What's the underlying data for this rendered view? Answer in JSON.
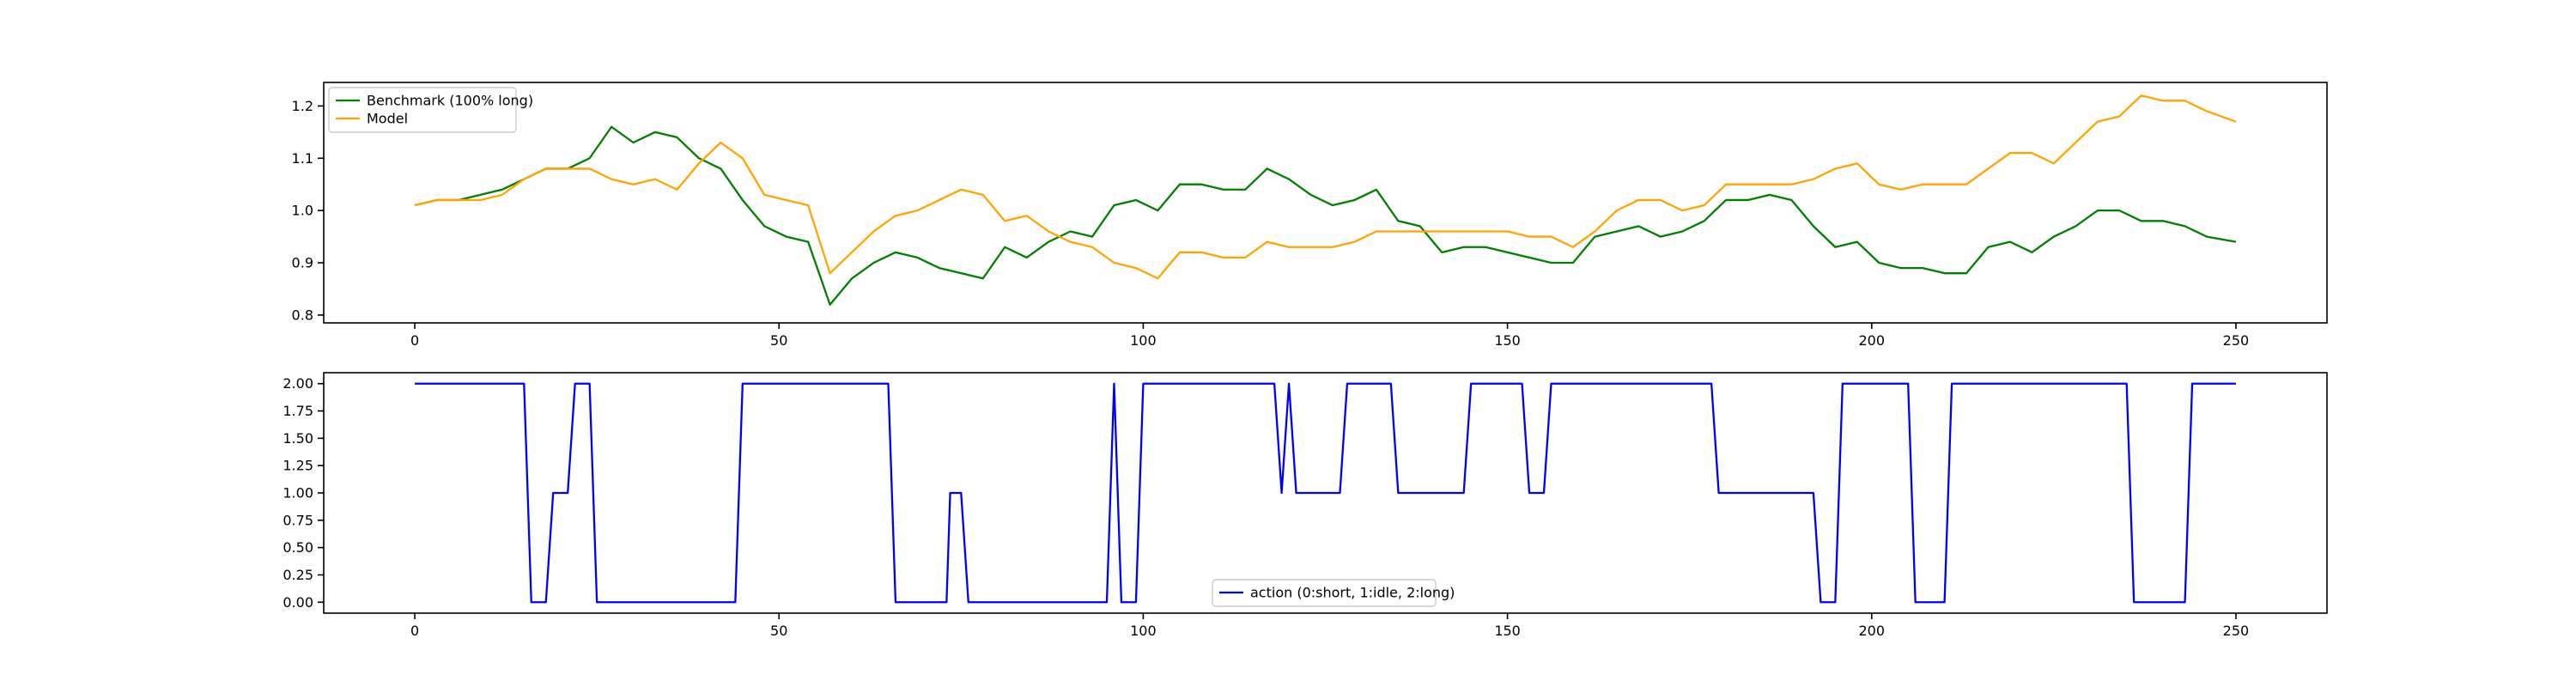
{
  "chart_data": [
    {
      "type": "line",
      "x": [
        0,
        3,
        6,
        9,
        12,
        15,
        18,
        21,
        24,
        27,
        30,
        33,
        36,
        39,
        42,
        45,
        48,
        51,
        54,
        57,
        60,
        63,
        66,
        69,
        72,
        75,
        78,
        81,
        84,
        87,
        90,
        93,
        96,
        99,
        102,
        105,
        108,
        111,
        114,
        117,
        120,
        123,
        126,
        129,
        132,
        135,
        138,
        141,
        144,
        147,
        150,
        153,
        156,
        159,
        162,
        165,
        168,
        171,
        174,
        177,
        180,
        183,
        186,
        189,
        192,
        195,
        198,
        201,
        204,
        207,
        210,
        213,
        216,
        219,
        222,
        225,
        228,
        231,
        234,
        237,
        240,
        243,
        246,
        250
      ],
      "series": [
        {
          "name": "Benchmark (100% long)",
          "color": "#008000",
          "values": [
            1.01,
            1.02,
            1.02,
            1.03,
            1.04,
            1.06,
            1.08,
            1.08,
            1.1,
            1.16,
            1.13,
            1.15,
            1.14,
            1.1,
            1.08,
            1.02,
            0.97,
            0.95,
            0.94,
            0.82,
            0.87,
            0.9,
            0.92,
            0.91,
            0.89,
            0.88,
            0.87,
            0.93,
            0.91,
            0.94,
            0.96,
            0.95,
            1.01,
            1.02,
            1.0,
            1.05,
            1.05,
            1.04,
            1.04,
            1.08,
            1.06,
            1.03,
            1.01,
            1.02,
            1.04,
            0.98,
            0.97,
            0.92,
            0.93,
            0.93,
            0.92,
            0.91,
            0.9,
            0.9,
            0.95,
            0.96,
            0.97,
            0.95,
            0.96,
            0.98,
            1.02,
            1.02,
            1.03,
            1.02,
            0.97,
            0.93,
            0.94,
            0.9,
            0.89,
            0.89,
            0.88,
            0.88,
            0.93,
            0.94,
            0.92,
            0.95,
            0.97,
            1.0,
            1.0,
            0.98,
            0.98,
            0.97,
            0.95,
            0.94
          ]
        },
        {
          "name": "Model",
          "color": "#FFA500",
          "values": [
            1.01,
            1.02,
            1.02,
            1.02,
            1.03,
            1.06,
            1.08,
            1.08,
            1.08,
            1.06,
            1.05,
            1.06,
            1.04,
            1.09,
            1.13,
            1.1,
            1.03,
            1.02,
            1.01,
            0.88,
            0.92,
            0.96,
            0.99,
            1.0,
            1.02,
            1.04,
            1.03,
            0.98,
            0.99,
            0.96,
            0.94,
            0.93,
            0.9,
            0.89,
            0.87,
            0.92,
            0.92,
            0.91,
            0.91,
            0.94,
            0.93,
            0.93,
            0.93,
            0.94,
            0.96,
            0.96,
            0.96,
            0.96,
            0.96,
            0.96,
            0.96,
            0.95,
            0.95,
            0.93,
            0.96,
            1.0,
            1.02,
            1.02,
            1.0,
            1.01,
            1.05,
            1.05,
            1.05,
            1.05,
            1.06,
            1.08,
            1.09,
            1.05,
            1.04,
            1.05,
            1.05,
            1.05,
            1.08,
            1.11,
            1.11,
            1.09,
            1.13,
            1.17,
            1.18,
            1.22,
            1.21,
            1.21,
            1.19,
            1.17
          ]
        }
      ],
      "xticks": [
        "0",
        "50",
        "100",
        "150",
        "200",
        "250"
      ],
      "yticks": [
        "0.8",
        "0.9",
        "1.0",
        "1.1",
        "1.2"
      ],
      "xlim": [
        -12.5,
        262.5
      ],
      "ylim": [
        0.785,
        1.245
      ],
      "legend": "top-left"
    },
    {
      "type": "line",
      "series": [
        {
          "name": "action (0:short, 1:idle, 2:long)",
          "color": "#0000FF",
          "points": [
            [
              0,
              2
            ],
            [
              15,
              2
            ],
            [
              16,
              0
            ],
            [
              18,
              0
            ],
            [
              19,
              1
            ],
            [
              21,
              1
            ],
            [
              22,
              2
            ],
            [
              24,
              2
            ],
            [
              25,
              0
            ],
            [
              44,
              0
            ],
            [
              45,
              2
            ],
            [
              65,
              2
            ],
            [
              66,
              0
            ],
            [
              73,
              0
            ],
            [
              73.5,
              1
            ],
            [
              75,
              1
            ],
            [
              76,
              0
            ],
            [
              95,
              0
            ],
            [
              96,
              2
            ],
            [
              97,
              0
            ],
            [
              99,
              0
            ],
            [
              100,
              2
            ],
            [
              118,
              2
            ],
            [
              119,
              1
            ],
            [
              120,
              2
            ],
            [
              121,
              1
            ],
            [
              127,
              1
            ],
            [
              128,
              2
            ],
            [
              134,
              2
            ],
            [
              135,
              1
            ],
            [
              144,
              1
            ],
            [
              145,
              2
            ],
            [
              152,
              2
            ],
            [
              153,
              1
            ],
            [
              155,
              1
            ],
            [
              156,
              2
            ],
            [
              178,
              2
            ],
            [
              179,
              1
            ],
            [
              192,
              1
            ],
            [
              193,
              0
            ],
            [
              195,
              0
            ],
            [
              196,
              2
            ],
            [
              205,
              2
            ],
            [
              206,
              0
            ],
            [
              210,
              0
            ],
            [
              211,
              2
            ],
            [
              235,
              2
            ],
            [
              236,
              0
            ],
            [
              243,
              0
            ],
            [
              244,
              2
            ],
            [
              250,
              2
            ]
          ]
        }
      ],
      "xticks": [
        "0",
        "50",
        "100",
        "150",
        "200",
        "250"
      ],
      "yticks": [
        "0.00",
        "0.25",
        "0.50",
        "0.75",
        "1.00",
        "1.25",
        "1.50",
        "1.75",
        "2.00"
      ],
      "xlim": [
        -12.5,
        262.5
      ],
      "ylim": [
        -0.1,
        2.1
      ],
      "legend": "lower-center"
    }
  ]
}
